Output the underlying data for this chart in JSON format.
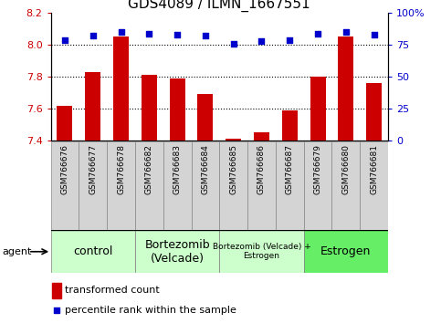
{
  "title": "GDS4089 / ILMN_1667551",
  "samples": [
    "GSM766676",
    "GSM766677",
    "GSM766678",
    "GSM766682",
    "GSM766683",
    "GSM766684",
    "GSM766685",
    "GSM766686",
    "GSM766687",
    "GSM766679",
    "GSM766680",
    "GSM766681"
  ],
  "transformed_count": [
    7.62,
    7.83,
    8.05,
    7.81,
    7.79,
    7.69,
    7.41,
    7.45,
    7.59,
    7.8,
    8.05,
    7.76
  ],
  "percentile_rank": [
    79,
    82,
    85,
    84,
    83,
    82,
    76,
    78,
    79,
    84,
    85,
    83
  ],
  "ylim_left": [
    7.4,
    8.2
  ],
  "ylim_right": [
    0,
    100
  ],
  "yticks_left": [
    7.4,
    7.6,
    7.8,
    8.0,
    8.2
  ],
  "yticks_right": [
    0,
    25,
    50,
    75,
    100
  ],
  "hgrid_vals": [
    7.6,
    7.8,
    8.0
  ],
  "bar_color": "#cc0000",
  "dot_color": "#0000cc",
  "bar_bottom": 7.4,
  "groups": [
    {
      "label": "control",
      "start": 0,
      "end": 3,
      "color": "#ccffcc",
      "fontsize": 9
    },
    {
      "label": "Bortezomib\n(Velcade)",
      "start": 3,
      "end": 6,
      "color": "#ccffcc",
      "fontsize": 9
    },
    {
      "label": "Bortezomib (Velcade) +\nEstrogen",
      "start": 6,
      "end": 9,
      "color": "#ccffcc",
      "fontsize": 6.5
    },
    {
      "label": "Estrogen",
      "start": 9,
      "end": 12,
      "color": "#66ee66",
      "fontsize": 9
    }
  ],
  "agent_label": "agent",
  "legend_bar_label": "transformed count",
  "legend_dot_label": "percentile rank within the sample",
  "bg_color": "#ffffff",
  "title_fontsize": 11,
  "tick_fontsize": 8,
  "bar_width": 0.55,
  "cell_color": "#d4d4d4",
  "cell_edge_color": "#888888"
}
